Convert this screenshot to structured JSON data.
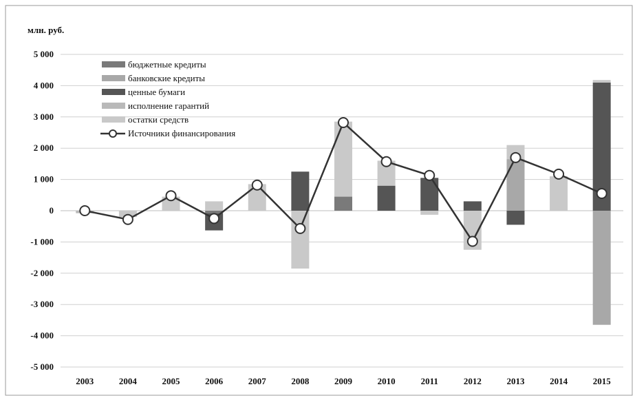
{
  "chart_data": {
    "type": "bar",
    "ylabel": "млн. руб.",
    "ylim": [
      -5000,
      5000
    ],
    "yticks": [
      5000,
      4000,
      3000,
      2000,
      1000,
      0,
      -1000,
      -2000,
      -3000,
      -4000,
      -5000
    ],
    "ytick_labels": [
      "5 000",
      "4 000",
      "3 000",
      "2 000",
      "1 000",
      "0",
      "-1 000",
      "-2 000",
      "-3 000",
      "-4 000",
      "-5 000"
    ],
    "grid": true,
    "legend_position": "top-left",
    "categories": [
      "2003",
      "2004",
      "2005",
      "2006",
      "2007",
      "2008",
      "2009",
      "2010",
      "2011",
      "2012",
      "2013",
      "2014",
      "2015"
    ],
    "series": [
      {
        "name": "бюджетные кредиты",
        "kind": "bar",
        "color": "#7a7a7a",
        "values": [
          0,
          0,
          0,
          -80,
          0,
          0,
          450,
          0,
          0,
          0,
          0,
          0,
          0
        ]
      },
      {
        "name": "банковские кредиты",
        "kind": "bar",
        "color": "#a8a8a8",
        "values": [
          0,
          0,
          0,
          0,
          0,
          0,
          0,
          0,
          0,
          0,
          1650,
          0,
          -3650
        ]
      },
      {
        "name": "ценные бумаги",
        "kind": "bar",
        "color": "#555555",
        "values": [
          0,
          0,
          0,
          -550,
          0,
          1250,
          0,
          800,
          1050,
          300,
          -450,
          0,
          4100
        ]
      },
      {
        "name": "исполнение гарантий",
        "kind": "bar",
        "color": "#b9b9b9",
        "values": [
          -80,
          0,
          0,
          0,
          0,
          0,
          0,
          0,
          0,
          0,
          0,
          0,
          0
        ]
      },
      {
        "name": "остатки средств",
        "kind": "bar",
        "color": "#c9c9c9",
        "values": [
          0,
          -200,
          450,
          300,
          850,
          -1850,
          2400,
          800,
          -130,
          -1250,
          450,
          1100,
          80
        ]
      },
      {
        "name": "Источники финансирования",
        "kind": "line",
        "color": "#333333",
        "values": [
          0,
          -280,
          480,
          -250,
          820,
          -570,
          2820,
          1570,
          1130,
          -980,
          1700,
          1170,
          550
        ]
      }
    ]
  }
}
